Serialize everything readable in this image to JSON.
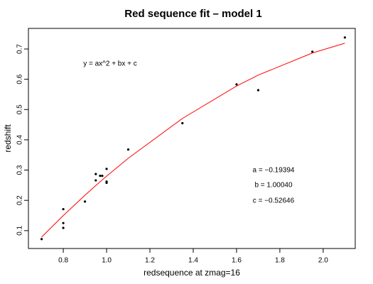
{
  "chart_data": {
    "type": "scatter",
    "title": "Red sequence fit – model 1",
    "x_label": "redsequence at zmag=16",
    "y_label": "redshift",
    "annotations": [
      "y = ax^2 + bx + c",
      "a = −0.19394",
      "b = 1.00040",
      "c = −0.52646"
    ],
    "xlim": [
      0.639,
      2.148
    ],
    "ylim": [
      0.041,
      0.768
    ],
    "xticks": [
      0.8,
      {
        "value": 1,
        "label": "1.0"
      },
      1.2,
      1.4,
      1.6,
      1.8,
      {
        "value": 2,
        "label": "2.0"
      }
    ],
    "yticks": [
      0.1,
      0.2,
      0.3,
      0.4,
      0.5,
      0.6,
      0.7
    ],
    "series": [
      {
        "style": "points",
        "color": "#000000",
        "x": [
          0.7,
          0.8,
          0.8,
          0.8,
          0.9,
          0.95,
          0.95,
          0.97,
          0.98,
          1.0,
          1.0,
          1.0,
          1.1,
          1.35,
          1.6,
          1.7,
          1.95,
          2.1
        ],
        "values": [
          0.072,
          0.171,
          0.125,
          0.109,
          0.196,
          0.287,
          0.266,
          0.281,
          0.281,
          0.304,
          0.262,
          0.258,
          0.368,
          0.455,
          0.583,
          0.564,
          0.691,
          0.738
        ]
      },
      {
        "style": "line",
        "color": "#ff0000",
        "x": [
          0.7,
          0.8,
          0.9,
          0.95,
          1.0,
          1.1,
          1.35,
          1.6,
          1.7,
          1.95,
          2.1
        ],
        "values": [
          0.0788,
          0.1497,
          0.2168,
          0.2489,
          0.28,
          0.3392,
          0.4705,
          0.5776,
          0.6137,
          0.6868,
          0.719
        ]
      }
    ]
  }
}
